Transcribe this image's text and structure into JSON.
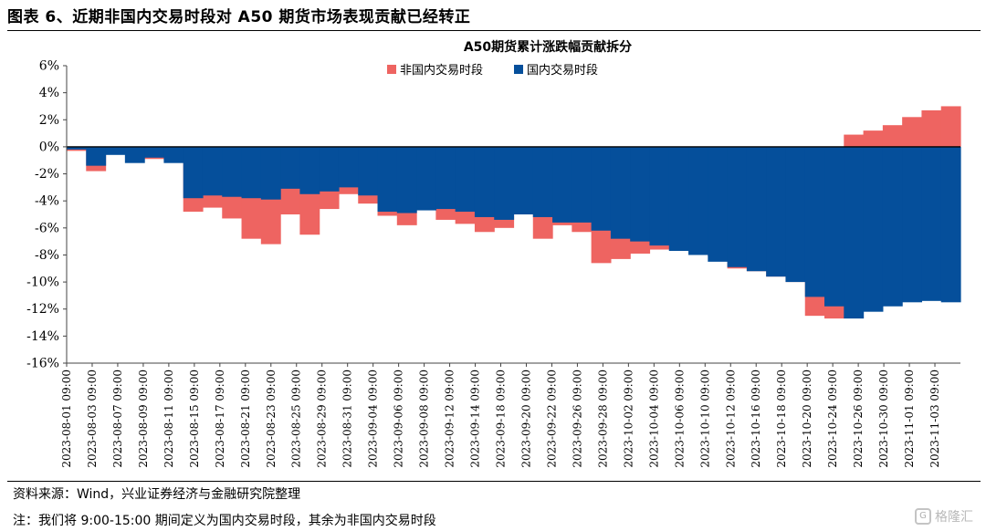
{
  "figure": {
    "title": "图表 6、近期非国内交易时段对 A50 期货市场表现贡献已经转正",
    "source": "资料来源：Wind，兴业证券经济与金融研究院整理",
    "note": "注：我们将 9:00-15:00 期间定义为国内交易时段，其余为非国内交易时段",
    "watermark": "格隆汇"
  },
  "chart_data": {
    "type": "area",
    "title": "A50期货累计涨跌幅贡献拆分",
    "xlabel": "",
    "ylabel": "",
    "ylim": [
      -16,
      6
    ],
    "y_ticks": [
      "6%",
      "4%",
      "2%",
      "0%",
      "-2%",
      "-4%",
      "-6%",
      "-8%",
      "-10%",
      "-12%",
      "-14%",
      "-16%"
    ],
    "y_tick_values": [
      6,
      4,
      2,
      0,
      -2,
      -4,
      -6,
      -8,
      -10,
      -12,
      -14,
      -16
    ],
    "legend_position": "top",
    "grid": false,
    "x_tick_labels": [
      "2023-08-01 09:00",
      "2023-08-03 09:00",
      "2023-08-07 09:00",
      "2023-08-09 09:00",
      "2023-08-11 09:00",
      "2023-08-15 09:00",
      "2023-08-17 09:00",
      "2023-08-21 09:00",
      "2023-08-23 09:00",
      "2023-08-25 09:00",
      "2023-08-29 09:00",
      "2023-08-31 09:00",
      "2023-09-04 09:00",
      "2023-09-06 09:00",
      "2023-09-08 09:00",
      "2023-09-12 09:00",
      "2023-09-14 09:00",
      "2023-09-18 09:00",
      "2023-09-20 09:00",
      "2023-09-22 09:00",
      "2023-09-26 09:00",
      "2023-09-28 09:00",
      "2023-10-02 09:00",
      "2023-10-04 09:00",
      "2023-10-06 09:00",
      "2023-10-10 09:00",
      "2023-10-12 09:00",
      "2023-10-16 09:00",
      "2023-10-18 09:00",
      "2023-10-20 09:00",
      "2023-10-24 09:00",
      "2023-10-26 09:00",
      "2023-10-30 09:00",
      "2023-11-01 09:00",
      "2023-11-03 09:00"
    ],
    "series": [
      {
        "name": "非国内交易时段",
        "color": "#ee6461",
        "values": [
          -0.3,
          -1.8,
          -0.5,
          -0.2,
          -0.9,
          -1.0,
          -4.8,
          -4.5,
          -5.3,
          -6.8,
          -7.2,
          -5.0,
          -6.5,
          -4.6,
          -3.5,
          -4.2,
          -5.1,
          -5.8,
          -4.1,
          -5.4,
          -5.7,
          -6.3,
          -6.0,
          -4.7,
          -6.8,
          -5.8,
          -6.3,
          -8.6,
          -8.3,
          -7.9,
          -7.6,
          -7.2,
          -7.4,
          -8.1,
          -9.0,
          -9.2,
          -9.6,
          -10.0,
          -12.5,
          -12.7,
          0.9,
          1.2,
          1.6,
          2.2,
          2.7,
          3.0
        ]
      },
      {
        "name": "国内交易时段",
        "color": "#054f9b",
        "values": [
          -0.2,
          -1.4,
          -0.6,
          -1.2,
          -0.8,
          -1.2,
          -3.8,
          -3.6,
          -3.7,
          -3.8,
          -3.9,
          -3.1,
          -3.5,
          -3.3,
          -3.0,
          -3.6,
          -4.8,
          -4.9,
          -4.7,
          -4.6,
          -4.8,
          -5.2,
          -5.4,
          -5.0,
          -5.2,
          -5.6,
          -5.6,
          -6.2,
          -6.8,
          -7.0,
          -7.3,
          -7.7,
          -8.0,
          -8.5,
          -8.9,
          -9.2,
          -9.6,
          -10.0,
          -11.1,
          -11.8,
          -12.7,
          -12.2,
          -11.8,
          -11.5,
          -11.4,
          -11.5
        ]
      }
    ]
  }
}
